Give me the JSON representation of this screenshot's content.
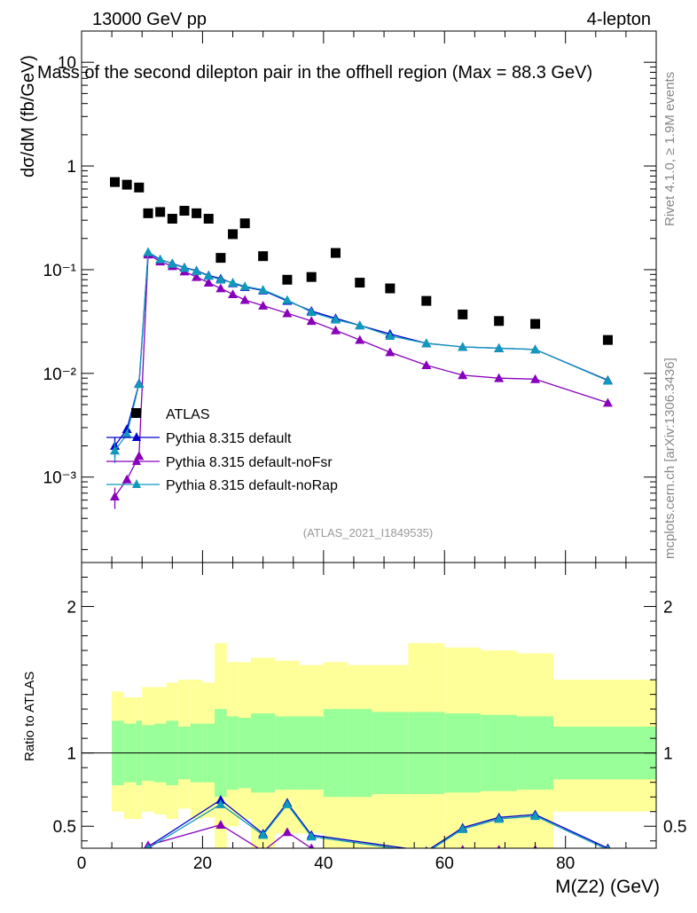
{
  "header": {
    "left": "13000 GeV pp",
    "right": "4-lepton",
    "side_top": "Rivet 4.1.0, ≥ 1.9M events",
    "side_bottom": "mcplots.cern.ch [arXiv:1306.3436]",
    "analysis_tag": "(ATLAS_2021_I1849535)"
  },
  "colors": {
    "atlas": "#000000",
    "default": "#0000cc",
    "noFsr": "#8800bb",
    "noRap": "#1199bb",
    "band_inner": "#99ff99",
    "band_outer": "#ffff99"
  },
  "chart_data": [
    {
      "type": "scatter",
      "title": "Mass of the second dilepton pair in the offhell region (Max = 88.3 GeV)",
      "ylabel": "dσ/dM (fb/GeV)",
      "xlabel": "",
      "xlim": [
        0,
        95
      ],
      "ylim": [
        0.00015,
        20
      ],
      "yscale": "log",
      "ytick_labels": [
        "10",
        "1",
        "10⁻¹",
        "10⁻²",
        "10⁻³"
      ],
      "ytick_values": [
        10,
        1,
        0.1,
        0.01,
        0.001
      ],
      "legend_position": "middle-left",
      "series": [
        {
          "name": "ATLAS",
          "marker": "square",
          "x": [
            5.5,
            7.5,
            9.5,
            11,
            13,
            15,
            17,
            19,
            21,
            23,
            25,
            27,
            30,
            34,
            38,
            42,
            46,
            51,
            57,
            63,
            69,
            75,
            87
          ],
          "y": [
            0.7,
            0.66,
            0.62,
            0.35,
            0.36,
            0.31,
            0.37,
            0.35,
            0.31,
            0.13,
            0.22,
            0.28,
            0.135,
            0.08,
            0.085,
            0.145,
            0.075,
            0.066,
            0.05,
            0.037,
            0.032,
            0.03,
            0.021
          ]
        },
        {
          "name": "Pythia 8.315 default",
          "marker": "triangle",
          "x": [
            5.5,
            7.5,
            9.5,
            11,
            13,
            15,
            17,
            19,
            21,
            23,
            25,
            27,
            30,
            34,
            38,
            42,
            46,
            51,
            57,
            63,
            69,
            75,
            87
          ],
          "y": [
            0.002,
            0.0029,
            0.008,
            0.145,
            0.125,
            0.115,
            0.105,
            0.098,
            0.088,
            0.082,
            0.074,
            0.068,
            0.063,
            0.05,
            0.04,
            0.034,
            0.029,
            0.024,
            0.0195,
            0.018,
            0.0175,
            0.017,
            0.0086
          ]
        },
        {
          "name": "Pythia 8.315 default-noFsr",
          "marker": "triangle",
          "x": [
            5.5,
            7.5,
            9.5,
            11,
            13,
            15,
            17,
            19,
            21,
            23,
            25,
            27,
            30,
            34,
            38,
            42,
            46,
            51,
            57,
            63,
            69,
            75,
            87
          ],
          "y": [
            0.00065,
            0.00095,
            0.0016,
            0.14,
            0.12,
            0.108,
            0.096,
            0.085,
            0.075,
            0.066,
            0.058,
            0.051,
            0.045,
            0.038,
            0.032,
            0.026,
            0.021,
            0.016,
            0.012,
            0.0096,
            0.009,
            0.0088,
            0.0052
          ]
        },
        {
          "name": "Pythia 8.315 default-noRap",
          "marker": "triangle",
          "x": [
            5.5,
            7.5,
            9.5,
            11,
            13,
            15,
            17,
            19,
            21,
            23,
            25,
            27,
            30,
            34,
            38,
            42,
            46,
            51,
            57,
            63,
            69,
            75,
            87
          ],
          "y": [
            0.0018,
            0.0026,
            0.0079,
            0.148,
            0.126,
            0.114,
            0.104,
            0.097,
            0.087,
            0.08,
            0.075,
            0.069,
            0.064,
            0.051,
            0.039,
            0.033,
            0.029,
            0.023,
            0.0195,
            0.018,
            0.0175,
            0.017,
            0.0085
          ]
        }
      ]
    },
    {
      "type": "line",
      "title": "",
      "ylabel": "Ratio to ATLAS",
      "xlabel": "M(Z2) (GeV)",
      "xlim": [
        0,
        95
      ],
      "ylim": [
        0.35,
        2.3
      ],
      "ytick_labels": [
        "2",
        "1",
        "0.5"
      ],
      "ytick_values": [
        2,
        1,
        0.5
      ],
      "xtick_labels": [
        "0",
        "20",
        "40",
        "60",
        "80"
      ],
      "xtick_values": [
        0,
        20,
        40,
        60,
        80
      ],
      "band_edges": [
        5,
        7,
        9,
        10,
        12,
        14,
        16,
        18,
        20,
        22,
        24,
        26,
        28,
        32,
        36,
        40,
        44,
        48,
        54,
        60,
        66,
        72,
        78,
        95
      ],
      "band_outer": {
        "low": [
          0.6,
          0.55,
          0.55,
          0.6,
          0.58,
          0.55,
          0.62,
          0.55,
          0.56,
          0.35,
          0.5,
          0.55,
          0.35,
          0.45,
          0.45,
          0.25,
          0.25,
          0.25,
          0.2,
          0.25,
          0.28,
          0.3,
          0.6
        ],
        "high": [
          1.42,
          1.38,
          1.38,
          1.45,
          1.45,
          1.48,
          1.5,
          1.5,
          1.48,
          1.75,
          1.62,
          1.62,
          1.65,
          1.63,
          1.6,
          1.62,
          1.6,
          1.6,
          1.75,
          1.72,
          1.7,
          1.68,
          1.5
        ]
      },
      "band_inner": {
        "low": [
          0.78,
          0.8,
          0.78,
          0.81,
          0.8,
          0.78,
          0.82,
          0.8,
          0.8,
          0.7,
          0.75,
          0.76,
          0.73,
          0.75,
          0.75,
          0.7,
          0.7,
          0.72,
          0.72,
          0.73,
          0.74,
          0.75,
          0.82
        ],
        "high": [
          1.22,
          1.2,
          1.22,
          1.19,
          1.2,
          1.22,
          1.18,
          1.2,
          1.2,
          1.3,
          1.25,
          1.24,
          1.27,
          1.25,
          1.25,
          1.3,
          1.3,
          1.28,
          1.28,
          1.27,
          1.26,
          1.25,
          1.18
        ]
      },
      "series": [
        {
          "name": "Pythia 8.315 default",
          "x": [
            11,
            23,
            30,
            34,
            38,
            57,
            63,
            69,
            75,
            87
          ],
          "y": [
            0.36,
            0.68,
            0.45,
            0.66,
            0.44,
            0.33,
            0.49,
            0.56,
            0.58,
            0.35
          ]
        },
        {
          "name": "Pythia 8.315 default-noFsr",
          "x": [
            11,
            23,
            30,
            34,
            38,
            57,
            63,
            69,
            75,
            87
          ],
          "y": [
            0.37,
            0.51,
            0.33,
            0.46,
            0.35,
            0.3,
            0.34,
            0.34,
            0.34,
            0.3
          ]
        },
        {
          "name": "Pythia 8.315 default-noRap",
          "x": [
            11,
            23,
            30,
            34,
            38,
            57,
            63,
            69,
            75,
            87
          ],
          "y": [
            0.35,
            0.65,
            0.44,
            0.65,
            0.43,
            0.32,
            0.48,
            0.55,
            0.57,
            0.34
          ]
        }
      ]
    }
  ]
}
